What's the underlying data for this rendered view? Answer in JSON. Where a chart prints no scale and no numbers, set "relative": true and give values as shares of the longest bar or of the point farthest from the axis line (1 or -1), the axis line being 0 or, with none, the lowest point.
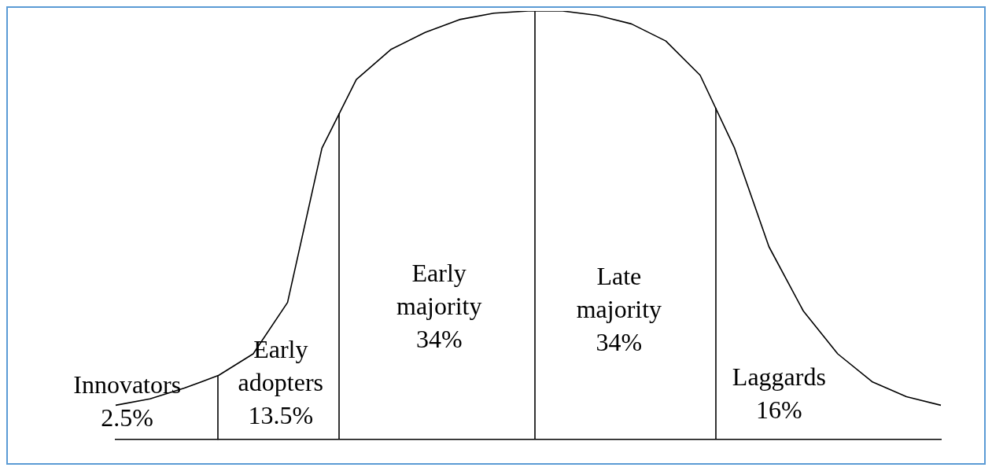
{
  "chart_data": {
    "type": "line",
    "relative": true,
    "tick_labels": false,
    "grid": false,
    "legend": false,
    "marker": "none",
    "line_style": "solid",
    "categories": [
      null,
      null,
      null,
      null,
      null,
      null,
      null,
      null,
      null,
      null,
      null,
      null,
      null,
      null,
      null,
      null,
      null,
      null,
      null,
      null,
      null,
      null,
      null,
      null,
      null
    ],
    "series": [
      {
        "color": "#000000",
        "values": [
          0.08,
          0.095,
          0.12,
          0.15,
          0.2,
          0.32,
          0.68,
          0.84,
          0.91,
          0.95,
          0.98,
          0.995,
          1,
          1,
          0.99,
          0.97,
          0.93,
          0.85,
          0.68,
          0.45,
          0.3,
          0.2,
          0.135,
          0.1,
          0.08
        ]
      }
    ],
    "annotations": [
      "Innovators\n2.5%",
      "Early\nadopters\n13.5%",
      "Early\nmajority\n34%",
      "Late\nmajority\n34%",
      "Laggards\n16%"
    ]
  }
}
